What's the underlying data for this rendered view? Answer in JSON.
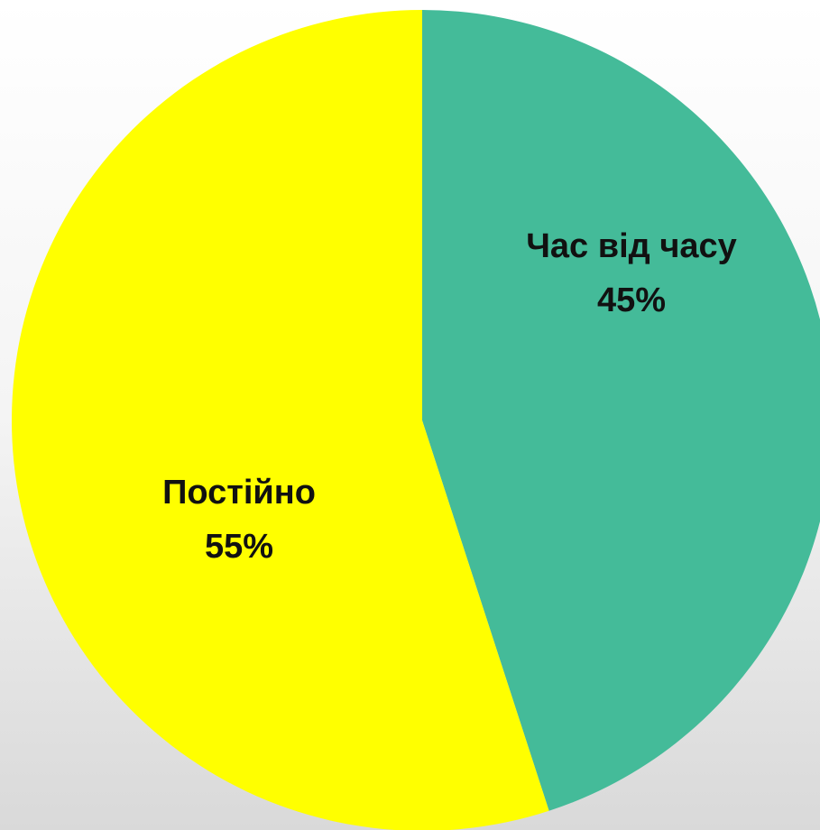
{
  "chart_data": {
    "type": "pie",
    "categories": [
      "Час від часу",
      "Постійно"
    ],
    "values": [
      45,
      55
    ],
    "value_labels": [
      "45%",
      "55%"
    ],
    "colors": [
      "#44bb99",
      "#ffff00"
    ]
  }
}
